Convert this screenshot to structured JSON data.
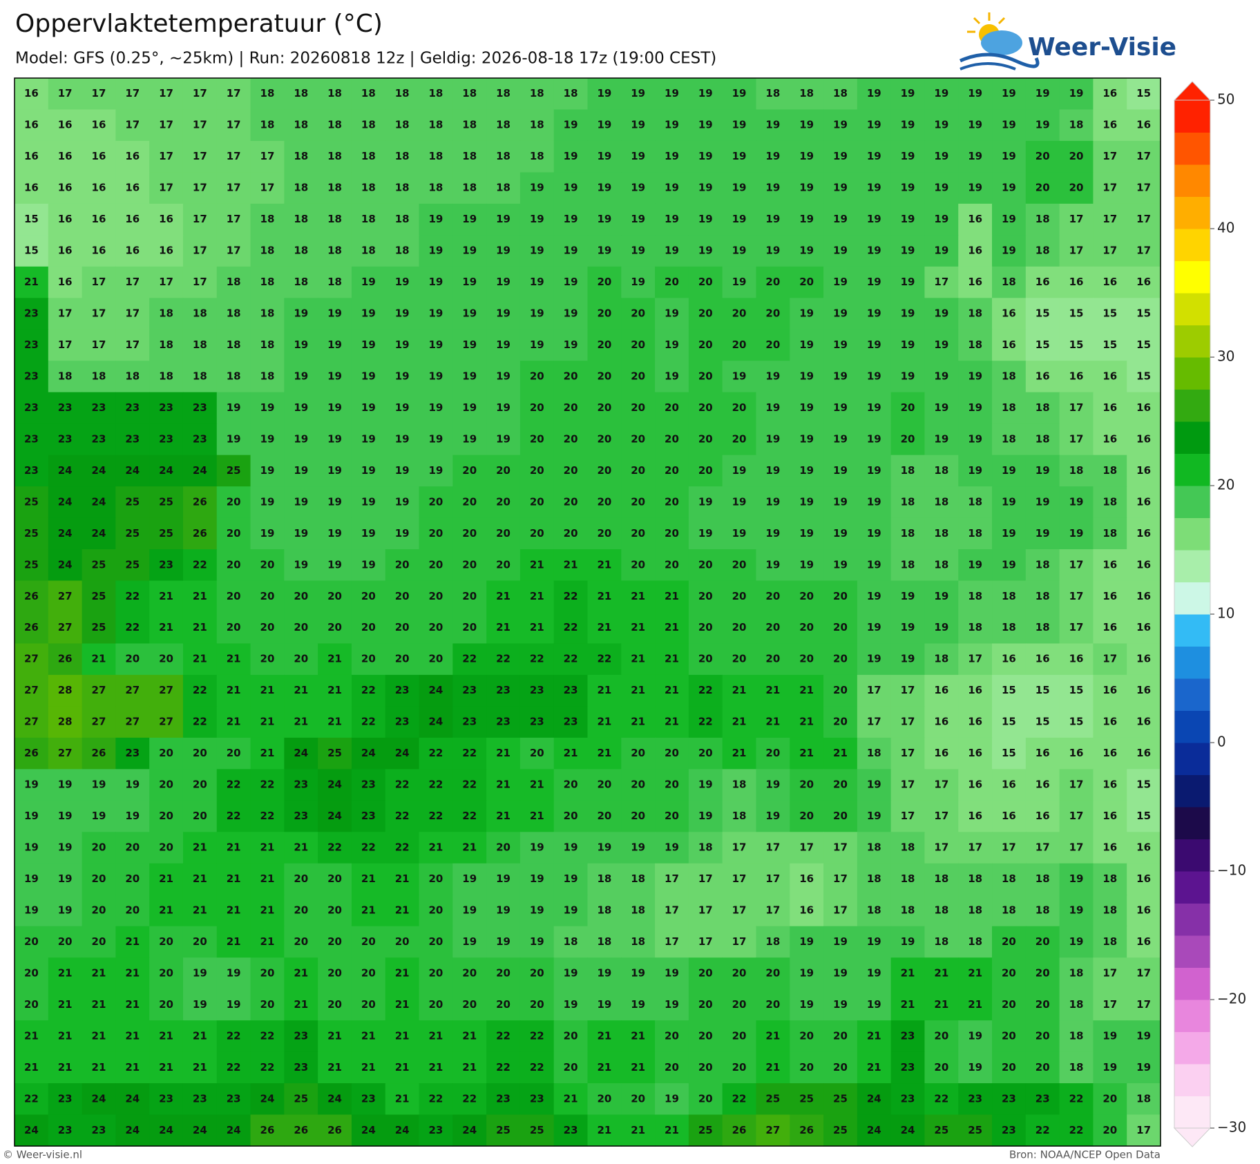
{
  "header": {
    "title": "Oppervlaktetemperatuur (°C)",
    "subtitle": "Model: GFS (0.25°, ~25km)  |  Run: 20260818 12z  |  Geldig: 2026-08-18 17z (19:00 CEST)"
  },
  "logo": {
    "text": "Weer-Visie"
  },
  "grid": {
    "rows": [
      [
        16,
        17,
        17,
        17,
        17,
        17,
        17,
        18,
        18,
        18,
        18,
        18,
        18,
        18,
        18,
        18,
        18,
        19,
        19,
        19,
        19,
        19,
        18,
        18,
        18,
        19,
        19,
        19,
        19,
        19,
        19,
        19,
        16,
        15
      ],
      [
        16,
        16,
        16,
        17,
        17,
        17,
        17,
        18,
        18,
        18,
        18,
        18,
        18,
        18,
        18,
        18,
        19,
        19,
        19,
        19,
        19,
        19,
        19,
        19,
        19,
        19,
        19,
        19,
        19,
        19,
        19,
        18,
        16,
        16
      ],
      [
        16,
        16,
        16,
        16,
        17,
        17,
        17,
        17,
        18,
        18,
        18,
        18,
        18,
        18,
        18,
        18,
        19,
        19,
        19,
        19,
        19,
        19,
        19,
        19,
        19,
        19,
        19,
        19,
        19,
        19,
        20,
        20,
        17,
        17
      ],
      [
        16,
        16,
        16,
        16,
        17,
        17,
        17,
        17,
        18,
        18,
        18,
        18,
        18,
        18,
        18,
        19,
        19,
        19,
        19,
        19,
        19,
        19,
        19,
        19,
        19,
        19,
        19,
        19,
        19,
        19,
        20,
        20,
        17,
        17
      ],
      [
        15,
        16,
        16,
        16,
        16,
        17,
        17,
        18,
        18,
        18,
        18,
        18,
        19,
        19,
        19,
        19,
        19,
        19,
        19,
        19,
        19,
        19,
        19,
        19,
        19,
        19,
        19,
        19,
        16,
        19,
        18,
        17,
        17,
        17
      ],
      [
        15,
        16,
        16,
        16,
        16,
        17,
        17,
        18,
        18,
        18,
        18,
        18,
        19,
        19,
        19,
        19,
        19,
        19,
        19,
        19,
        19,
        19,
        19,
        19,
        19,
        19,
        19,
        19,
        16,
        19,
        18,
        17,
        17,
        17
      ],
      [
        21,
        16,
        17,
        17,
        17,
        17,
        18,
        18,
        18,
        18,
        19,
        19,
        19,
        19,
        19,
        19,
        19,
        20,
        19,
        20,
        20,
        19,
        20,
        20,
        19,
        19,
        19,
        17,
        16,
        18,
        16,
        16,
        16,
        16
      ],
      [
        23,
        17,
        17,
        17,
        18,
        18,
        18,
        18,
        19,
        19,
        19,
        19,
        19,
        19,
        19,
        19,
        19,
        20,
        20,
        19,
        20,
        20,
        20,
        19,
        19,
        19,
        19,
        19,
        18,
        16,
        15,
        15,
        15,
        15
      ],
      [
        23,
        17,
        17,
        17,
        18,
        18,
        18,
        18,
        19,
        19,
        19,
        19,
        19,
        19,
        19,
        19,
        19,
        20,
        20,
        19,
        20,
        20,
        20,
        19,
        19,
        19,
        19,
        19,
        18,
        16,
        15,
        15,
        15,
        15
      ],
      [
        23,
        18,
        18,
        18,
        18,
        18,
        18,
        18,
        19,
        19,
        19,
        19,
        19,
        19,
        19,
        20,
        20,
        20,
        20,
        19,
        20,
        19,
        19,
        19,
        19,
        19,
        19,
        19,
        19,
        18,
        16,
        16,
        16,
        15
      ],
      [
        23,
        23,
        23,
        23,
        23,
        23,
        19,
        19,
        19,
        19,
        19,
        19,
        19,
        19,
        19,
        20,
        20,
        20,
        20,
        20,
        20,
        20,
        19,
        19,
        19,
        19,
        20,
        19,
        19,
        18,
        18,
        17,
        16,
        16
      ],
      [
        23,
        23,
        23,
        23,
        23,
        23,
        19,
        19,
        19,
        19,
        19,
        19,
        19,
        19,
        19,
        20,
        20,
        20,
        20,
        20,
        20,
        20,
        19,
        19,
        19,
        19,
        20,
        19,
        19,
        18,
        18,
        17,
        16,
        16
      ],
      [
        23,
        24,
        24,
        24,
        24,
        24,
        25,
        19,
        19,
        19,
        19,
        19,
        19,
        20,
        20,
        20,
        20,
        20,
        20,
        20,
        20,
        19,
        19,
        19,
        19,
        19,
        18,
        18,
        19,
        19,
        19,
        18,
        18,
        16
      ],
      [
        25,
        24,
        24,
        25,
        25,
        26,
        20,
        19,
        19,
        19,
        19,
        19,
        20,
        20,
        20,
        20,
        20,
        20,
        20,
        20,
        19,
        19,
        19,
        19,
        19,
        19,
        18,
        18,
        18,
        19,
        19,
        19,
        18,
        16
      ],
      [
        25,
        24,
        24,
        25,
        25,
        26,
        20,
        19,
        19,
        19,
        19,
        19,
        20,
        20,
        20,
        20,
        20,
        20,
        20,
        20,
        19,
        19,
        19,
        19,
        19,
        19,
        18,
        18,
        18,
        19,
        19,
        19,
        18,
        16
      ],
      [
        25,
        24,
        25,
        25,
        23,
        22,
        20,
        20,
        19,
        19,
        19,
        20,
        20,
        20,
        20,
        21,
        21,
        21,
        20,
        20,
        20,
        20,
        19,
        19,
        19,
        19,
        18,
        18,
        19,
        19,
        18,
        17,
        16,
        16
      ],
      [
        26,
        27,
        25,
        22,
        21,
        21,
        20,
        20,
        20,
        20,
        20,
        20,
        20,
        20,
        21,
        21,
        22,
        21,
        21,
        21,
        20,
        20,
        20,
        20,
        20,
        19,
        19,
        19,
        18,
        18,
        18,
        17,
        16,
        16
      ],
      [
        26,
        27,
        25,
        22,
        21,
        21,
        20,
        20,
        20,
        20,
        20,
        20,
        20,
        20,
        21,
        21,
        22,
        21,
        21,
        21,
        20,
        20,
        20,
        20,
        20,
        19,
        19,
        19,
        18,
        18,
        18,
        17,
        16,
        16
      ],
      [
        27,
        26,
        21,
        20,
        20,
        21,
        21,
        20,
        20,
        21,
        20,
        20,
        20,
        22,
        22,
        22,
        22,
        22,
        21,
        21,
        20,
        20,
        20,
        20,
        20,
        19,
        19,
        18,
        17,
        16,
        16,
        16,
        17,
        16
      ],
      [
        27,
        28,
        27,
        27,
        27,
        22,
        21,
        21,
        21,
        21,
        22,
        23,
        24,
        23,
        23,
        23,
        23,
        21,
        21,
        21,
        22,
        21,
        21,
        21,
        20,
        17,
        17,
        16,
        16,
        15,
        15,
        15,
        16,
        16
      ],
      [
        27,
        28,
        27,
        27,
        27,
        22,
        21,
        21,
        21,
        21,
        22,
        23,
        24,
        23,
        23,
        23,
        23,
        21,
        21,
        21,
        22,
        21,
        21,
        21,
        20,
        17,
        17,
        16,
        16,
        15,
        15,
        15,
        16,
        16
      ],
      [
        26,
        27,
        26,
        23,
        20,
        20,
        20,
        21,
        24,
        25,
        24,
        24,
        22,
        22,
        21,
        20,
        21,
        21,
        20,
        20,
        20,
        21,
        20,
        21,
        21,
        18,
        17,
        16,
        16,
        15,
        16,
        16,
        16,
        16
      ],
      [
        19,
        19,
        19,
        19,
        20,
        20,
        22,
        22,
        23,
        24,
        23,
        22,
        22,
        22,
        21,
        21,
        20,
        20,
        20,
        20,
        19,
        18,
        19,
        20,
        20,
        19,
        17,
        17,
        16,
        16,
        16,
        17,
        16,
        15
      ],
      [
        19,
        19,
        19,
        19,
        20,
        20,
        22,
        22,
        23,
        24,
        23,
        22,
        22,
        22,
        21,
        21,
        20,
        20,
        20,
        20,
        19,
        18,
        19,
        20,
        20,
        19,
        17,
        17,
        16,
        16,
        16,
        17,
        16,
        15
      ],
      [
        19,
        19,
        20,
        20,
        20,
        21,
        21,
        21,
        21,
        22,
        22,
        22,
        21,
        21,
        20,
        19,
        19,
        19,
        19,
        19,
        18,
        17,
        17,
        17,
        17,
        18,
        18,
        17,
        17,
        17,
        17,
        17,
        16,
        16
      ],
      [
        19,
        19,
        20,
        20,
        21,
        21,
        21,
        21,
        20,
        20,
        21,
        21,
        20,
        19,
        19,
        19,
        19,
        18,
        18,
        17,
        17,
        17,
        17,
        16,
        17,
        18,
        18,
        18,
        18,
        18,
        18,
        19,
        18,
        16
      ],
      [
        19,
        19,
        20,
        20,
        21,
        21,
        21,
        21,
        20,
        20,
        21,
        21,
        20,
        19,
        19,
        19,
        19,
        18,
        18,
        17,
        17,
        17,
        17,
        16,
        17,
        18,
        18,
        18,
        18,
        18,
        18,
        19,
        18,
        16
      ],
      [
        20,
        20,
        20,
        21,
        20,
        20,
        21,
        21,
        20,
        20,
        20,
        20,
        20,
        19,
        19,
        19,
        18,
        18,
        18,
        17,
        17,
        17,
        18,
        19,
        19,
        19,
        19,
        18,
        18,
        20,
        20,
        19,
        18,
        16
      ],
      [
        20,
        21,
        21,
        21,
        20,
        19,
        19,
        20,
        21,
        20,
        20,
        21,
        20,
        20,
        20,
        20,
        19,
        19,
        19,
        19,
        20,
        20,
        20,
        19,
        19,
        19,
        21,
        21,
        21,
        20,
        20,
        18,
        17,
        17
      ],
      [
        20,
        21,
        21,
        21,
        20,
        19,
        19,
        20,
        21,
        20,
        20,
        21,
        20,
        20,
        20,
        20,
        19,
        19,
        19,
        19,
        20,
        20,
        20,
        19,
        19,
        19,
        21,
        21,
        21,
        20,
        20,
        18,
        17,
        17
      ],
      [
        21,
        21,
        21,
        21,
        21,
        21,
        22,
        22,
        23,
        21,
        21,
        21,
        21,
        21,
        22,
        22,
        20,
        21,
        21,
        20,
        20,
        20,
        21,
        20,
        20,
        21,
        23,
        20,
        19,
        20,
        20,
        18,
        19,
        19
      ],
      [
        21,
        21,
        21,
        21,
        21,
        21,
        22,
        22,
        23,
        21,
        21,
        21,
        21,
        21,
        22,
        22,
        20,
        21,
        21,
        20,
        20,
        20,
        21,
        20,
        20,
        21,
        23,
        20,
        19,
        20,
        20,
        18,
        19,
        19
      ],
      [
        22,
        23,
        24,
        24,
        23,
        23,
        23,
        24,
        25,
        24,
        23,
        21,
        22,
        22,
        23,
        23,
        21,
        20,
        20,
        19,
        20,
        22,
        25,
        25,
        25,
        24,
        23,
        22,
        23,
        23,
        23,
        22,
        20,
        18
      ],
      [
        24,
        23,
        23,
        24,
        24,
        24,
        24,
        26,
        26,
        26,
        24,
        24,
        23,
        24,
        25,
        25,
        23,
        21,
        21,
        21,
        25,
        26,
        27,
        26,
        25,
        24,
        24,
        25,
        25,
        23,
        22,
        22,
        20,
        17
      ]
    ]
  },
  "colorbar": {
    "lim": [
      -30,
      50
    ],
    "ticks": [
      50,
      40,
      30,
      20,
      10,
      0,
      {
        "value": -10,
        "label": "−10"
      },
      {
        "value": -20,
        "label": "−20"
      },
      {
        "value": -30,
        "label": "−30"
      }
    ],
    "colors": [
      "#fde8f6",
      "#fbd0f1",
      "#f4a9e8",
      "#e886dd",
      "#d162cf",
      "#a949ba",
      "#8630a8",
      "#5c1490",
      "#3b0a70",
      "#1c0a4a",
      "#0a1a70",
      "#0a2c99",
      "#0a46b3",
      "#1a66cc",
      "#1e8fe0",
      "#33bbf5",
      "#ccf7e6",
      "#a8eeaa",
      "#7ddd77",
      "#44c855",
      "#11b822",
      "#009a10",
      "#33aa11",
      "#66bb00",
      "#9dcc00",
      "#d2e000",
      "#ffff00",
      "#ffd400",
      "#ffae00",
      "#ff8800",
      "#ff5500",
      "#ff2200",
      "#ee0000",
      "#c80000",
      "#a00000",
      "#7a0000",
      "#4d0a2a",
      "#8a0a6a",
      "#b0109a",
      "#dd33cc",
      "#ff5ee0",
      "#ffa6e6",
      "#ffd8f0"
    ]
  },
  "footer": {
    "left": "© Weer-visie.nl",
    "right": "Bron: NOAA/NCEP Open Data"
  }
}
